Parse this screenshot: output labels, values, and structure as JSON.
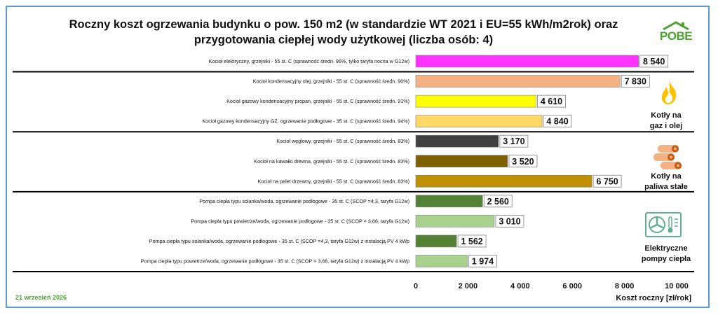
{
  "title_line1": "Roczny koszt ogrzewania budynku o pow. 150 m2 (w standardzie WT 2021 i EU=55 kWh/m2rok) oraz",
  "title_line2": "przygotowania ciepłej wody użytkowej (liczba osób: 4)",
  "logo_text": "POBE",
  "date": "21 wrzesień 2026",
  "group_labels": {
    "gas_oil": [
      "Kotły na",
      "gaz i olej"
    ],
    "solid": [
      "Kotły na",
      "paliwa stałe"
    ],
    "heat_pumps": [
      "Elektryczne",
      "pompy ciepła"
    ]
  },
  "icons": [
    "flame-icon",
    "logs-icon",
    "heat-pump-icon"
  ],
  "chart_data": {
    "type": "bar",
    "orientation": "horizontal",
    "xlabel": "Koszt roczny [zł/rok]",
    "xlim": [
      0,
      10000
    ],
    "xticks": [
      0,
      2000,
      4000,
      6000,
      8000,
      10000
    ],
    "xtick_labels": [
      "0",
      "2 000",
      "4 000",
      "6 000",
      "8 000",
      "10 000"
    ],
    "grid": false,
    "categories": [
      "Kocioł  elektryczny,  grzejniki - 55 st. C  (sprawność średn. 96%, tylko taryfa nocna w G12w)",
      "Kocioł  kondensacyjny olej,  grzejniki - 55 st. C (sprawność średn. 90%)",
      "Kocioł gazowy kondensacyjny propan, grzejniki - 55 st. C (sprawność średn. 91%)",
      "Kocioł gazowy kondensacyjny GZ, ogrzewanie podłogowe - 35 st. C (sprawność średn. 94%)",
      "Kocioł węglowy,  grzejniki - 55 st. C (sprawność średn. 83%)",
      "Kocioł na kawałki drewna, grzejniki - 55 st. C (sprawność średn. 83%)",
      "Kocioł na pelet drzewny, grzejniki - 55 st. C (sprawność średn. 83%)",
      "Pompa ciepła typu solanka/woda, ogrzewanie podłogowe - 35 st. C (SCOP =4,3, taryfa G12w)",
      "Pompa ciepła typu powietrze/woda, ogrzewanie podłogowe - 35 st. C (SCOP = 3,66, taryfa G12w)",
      "Pompa ciepła typu solanka/woda, ogrzewanie podłogowe - 35 st. C (SCOP =4,3, taryfa G12w) z instalacją PV 4 kWp",
      "Pompa ciepła typu powietrze/woda, ogrzewanie podłogowe - 35 st. C (SCOP = 3,66, taryfa G12w) z instalacją PV 4 kWp"
    ],
    "values": [
      8540,
      7830,
      4610,
      4840,
      3170,
      3520,
      6750,
      2560,
      3010,
      1562,
      1974
    ],
    "value_labels": [
      "8 540",
      "7 830",
      "4 610",
      "4 840",
      "3 170",
      "3 520",
      "6 750",
      "2 560",
      "3 010",
      "1 562",
      "1 974"
    ],
    "colors": [
      "#ff33ff",
      "#f4b183",
      "#ffff00",
      "#ffd966",
      "#404040",
      "#7f6000",
      "#bf9000",
      "#548235",
      "#a9d18e",
      "#548235",
      "#a9d18e"
    ]
  }
}
